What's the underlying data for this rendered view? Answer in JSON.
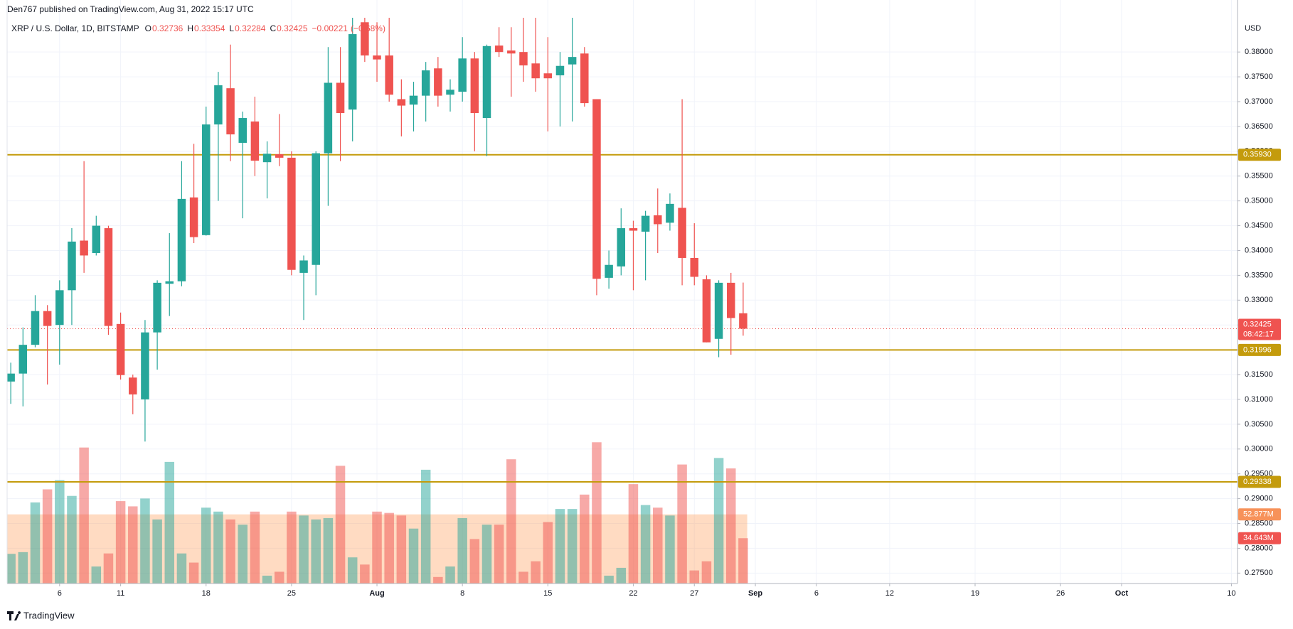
{
  "chart_data": {
    "type": "candlestick",
    "publisher": "Den767 published on TradingView.com, Aug 31, 2022 15:17 UTC",
    "symbol": "XRP / U.S. Dollar, 1D, BITSTAMP",
    "ohlc_keys": [
      "O",
      "H",
      "L",
      "C"
    ],
    "change": {
      "value": -0.00221,
      "label": "−0.00221"
    },
    "change_pct": {
      "value": -0.68,
      "label": "(−0.68%)"
    },
    "currency": "USD",
    "brand": "TradingView",
    "up_color": "#26a69a",
    "down_color": "#ef5350",
    "level_color": "#c49b0c",
    "open": [
      0.3136,
      0.3152,
      0.321,
      0.3278,
      0.325,
      0.332,
      0.342,
      0.3395,
      0.3445,
      0.3252,
      0.3144,
      0.31,
      0.3235,
      0.3333,
      0.3338,
      0.3507,
      0.3431,
      0.3654,
      0.3727,
      0.3617,
      0.366,
      0.3578,
      0.3594,
      0.3587,
      0.3355,
      0.3371,
      0.3596,
      0.3738,
      0.3684,
      0.386,
      0.3793,
      0.3793,
      0.3705,
      0.3694,
      0.3712,
      0.3767,
      0.3714,
      0.372,
      0.3787,
      0.3667,
      0.3813,
      0.3803,
      0.38,
      0.3777,
      0.3757,
      0.3753,
      0.3775,
      0.3797,
      0.3705,
      0.3345,
      0.3368,
      0.3445,
      0.3438,
      0.3471,
      0.3456,
      0.3486,
      0.3385,
      0.3342,
      0.3222,
      0.3335,
      0.32736
    ],
    "high": [
      0.3174,
      0.3245,
      0.331,
      0.329,
      0.334,
      0.3445,
      0.358,
      0.347,
      0.345,
      0.3275,
      0.315,
      0.326,
      0.334,
      0.3435,
      0.358,
      0.3615,
      0.369,
      0.376,
      0.3815,
      0.368,
      0.371,
      0.362,
      0.3675,
      0.36,
      0.339,
      0.36,
      0.381,
      0.381,
      0.387,
      0.388,
      0.386,
      0.387,
      0.3745,
      0.374,
      0.378,
      0.379,
      0.3745,
      0.383,
      0.38,
      0.3815,
      0.385,
      0.385,
      0.387,
      0.387,
      0.383,
      0.38,
      0.387,
      0.381,
      0.3705,
      0.34,
      0.3485,
      0.346,
      0.348,
      0.3525,
      0.3515,
      0.3705,
      0.3455,
      0.335,
      0.334,
      0.3355,
      0.33354
    ],
    "low": [
      0.3091,
      0.3086,
      0.3205,
      0.313,
      0.317,
      0.325,
      0.3355,
      0.339,
      0.323,
      0.314,
      0.307,
      0.3015,
      0.316,
      0.3268,
      0.3328,
      0.3415,
      0.343,
      0.35,
      0.358,
      0.3465,
      0.355,
      0.3505,
      0.357,
      0.335,
      0.326,
      0.331,
      0.349,
      0.358,
      0.362,
      0.378,
      0.374,
      0.37,
      0.363,
      0.364,
      0.366,
      0.369,
      0.368,
      0.37,
      0.36,
      0.359,
      0.379,
      0.371,
      0.374,
      0.372,
      0.364,
      0.365,
      0.366,
      0.369,
      0.331,
      0.3323,
      0.335,
      0.332,
      0.334,
      0.3395,
      0.344,
      0.333,
      0.333,
      0.3215,
      0.3185,
      0.319,
      0.32284
    ],
    "close": [
      0.3152,
      0.321,
      0.3278,
      0.3248,
      0.332,
      0.3418,
      0.339,
      0.345,
      0.3248,
      0.3149,
      0.311,
      0.3235,
      0.3335,
      0.3338,
      0.3504,
      0.3427,
      0.3654,
      0.3733,
      0.3634,
      0.3667,
      0.3581,
      0.3595,
      0.3587,
      0.3361,
      0.338,
      0.3596,
      0.3738,
      0.3677,
      0.3836,
      0.3793,
      0.3785,
      0.3714,
      0.3692,
      0.3712,
      0.3763,
      0.3712,
      0.3724,
      0.3787,
      0.3677,
      0.3812,
      0.38,
      0.3797,
      0.3773,
      0.3747,
      0.3747,
      0.3772,
      0.379,
      0.3697,
      0.3343,
      0.3371,
      0.3445,
      0.344,
      0.347,
      0.3453,
      0.3494,
      0.3385,
      0.3347,
      0.3215,
      0.3335,
      0.3264,
      0.32425
    ],
    "volume": {
      "values": [
        22.7,
        24,
        62,
        72,
        79,
        67,
        104,
        13,
        23,
        63,
        59,
        65,
        49,
        93,
        23,
        16,
        58,
        55,
        49,
        45,
        55,
        6,
        9,
        55,
        52,
        49,
        50,
        90,
        20,
        14.5,
        55,
        54,
        52,
        42,
        87,
        5,
        13,
        50,
        34,
        45,
        45,
        95,
        9,
        17,
        47,
        57,
        57,
        68,
        108,
        6,
        12,
        76,
        60,
        58,
        52,
        91,
        10,
        17,
        96,
        88,
        34.643
      ],
      "last_label": "34.643M",
      "ma": {
        "value": 52.877,
        "label": "52.877M"
      },
      "ylim": [
        0,
        150
      ]
    },
    "countdown": "08:42:17",
    "levels": [
      {
        "value": 0.3593,
        "label": "0.35930"
      },
      {
        "value": 0.31996,
        "label": "0.31996"
      },
      {
        "value": 0.29338,
        "label": "0.29338"
      }
    ],
    "xlim": [
      -0.3,
      100.5
    ],
    "xticks": [
      {
        "value": 4,
        "label": "6"
      },
      {
        "value": 9,
        "label": "11"
      },
      {
        "value": 16,
        "label": "18"
      },
      {
        "value": 23,
        "label": "25"
      },
      {
        "value": 30,
        "label": "Aug"
      },
      {
        "value": 37,
        "label": "8"
      },
      {
        "value": 44,
        "label": "15"
      },
      {
        "value": 51,
        "label": "22"
      },
      {
        "value": 56,
        "label": "27"
      },
      {
        "value": 61,
        "label": "Sep"
      },
      {
        "value": 66,
        "label": "6"
      },
      {
        "value": 72,
        "label": "12"
      },
      {
        "value": 79,
        "label": "19"
      },
      {
        "value": 86,
        "label": "26"
      },
      {
        "value": 91,
        "label": "Oct"
      },
      {
        "value": 100,
        "label": "10"
      }
    ],
    "ylim": [
      0.2729,
      0.3869
    ],
    "yticks": [
      {
        "value": 0.275,
        "label": "0.27500"
      },
      {
        "value": 0.28,
        "label": "0.28000"
      },
      {
        "value": 0.285,
        "label": "0.28500"
      },
      {
        "value": 0.29,
        "label": "0.29000"
      },
      {
        "value": 0.295,
        "label": "0.29500"
      },
      {
        "value": 0.3,
        "label": "0.30000"
      },
      {
        "value": 0.305,
        "label": "0.30500"
      },
      {
        "value": 0.31,
        "label": "0.31000"
      },
      {
        "value": 0.315,
        "label": "0.31500"
      },
      {
        "value": 0.32,
        "label": "0.32000"
      },
      {
        "value": 0.325,
        "label": "0.32500"
      },
      {
        "value": 0.33,
        "label": "0.33000"
      },
      {
        "value": 0.335,
        "label": "0.33500"
      },
      {
        "value": 0.34,
        "label": "0.34000"
      },
      {
        "value": 0.345,
        "label": "0.34500"
      },
      {
        "value": 0.35,
        "label": "0.35000"
      },
      {
        "value": 0.355,
        "label": "0.35500"
      },
      {
        "value": 0.36,
        "label": "0.36000"
      },
      {
        "value": 0.365,
        "label": "0.36500"
      },
      {
        "value": 0.37,
        "label": "0.37000"
      },
      {
        "value": 0.375,
        "label": "0.37500"
      },
      {
        "value": 0.38,
        "label": "0.38000"
      }
    ],
    "grid": true
  }
}
